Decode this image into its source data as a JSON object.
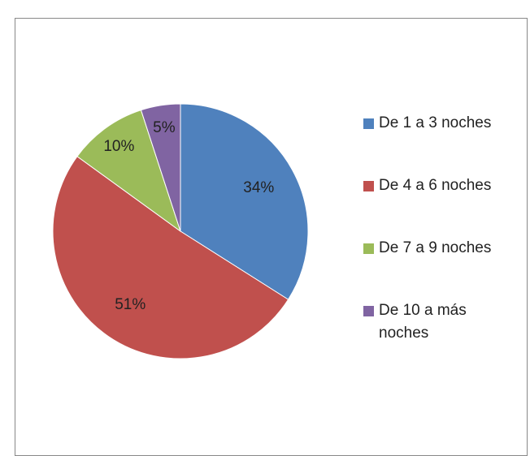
{
  "chart_data": {
    "type": "pie",
    "categories": [
      "De 1 a 3 noches",
      "De 4 a 6 noches",
      "De 7 a 9 noches",
      "De 10 a más noches"
    ],
    "values": [
      34,
      51,
      10,
      5
    ],
    "value_labels": [
      "34%",
      "51%",
      "10%",
      "5%"
    ],
    "colors": [
      "#4f81bd",
      "#c0504d",
      "#9bbb59",
      "#8064a2"
    ],
    "legend": "right"
  }
}
